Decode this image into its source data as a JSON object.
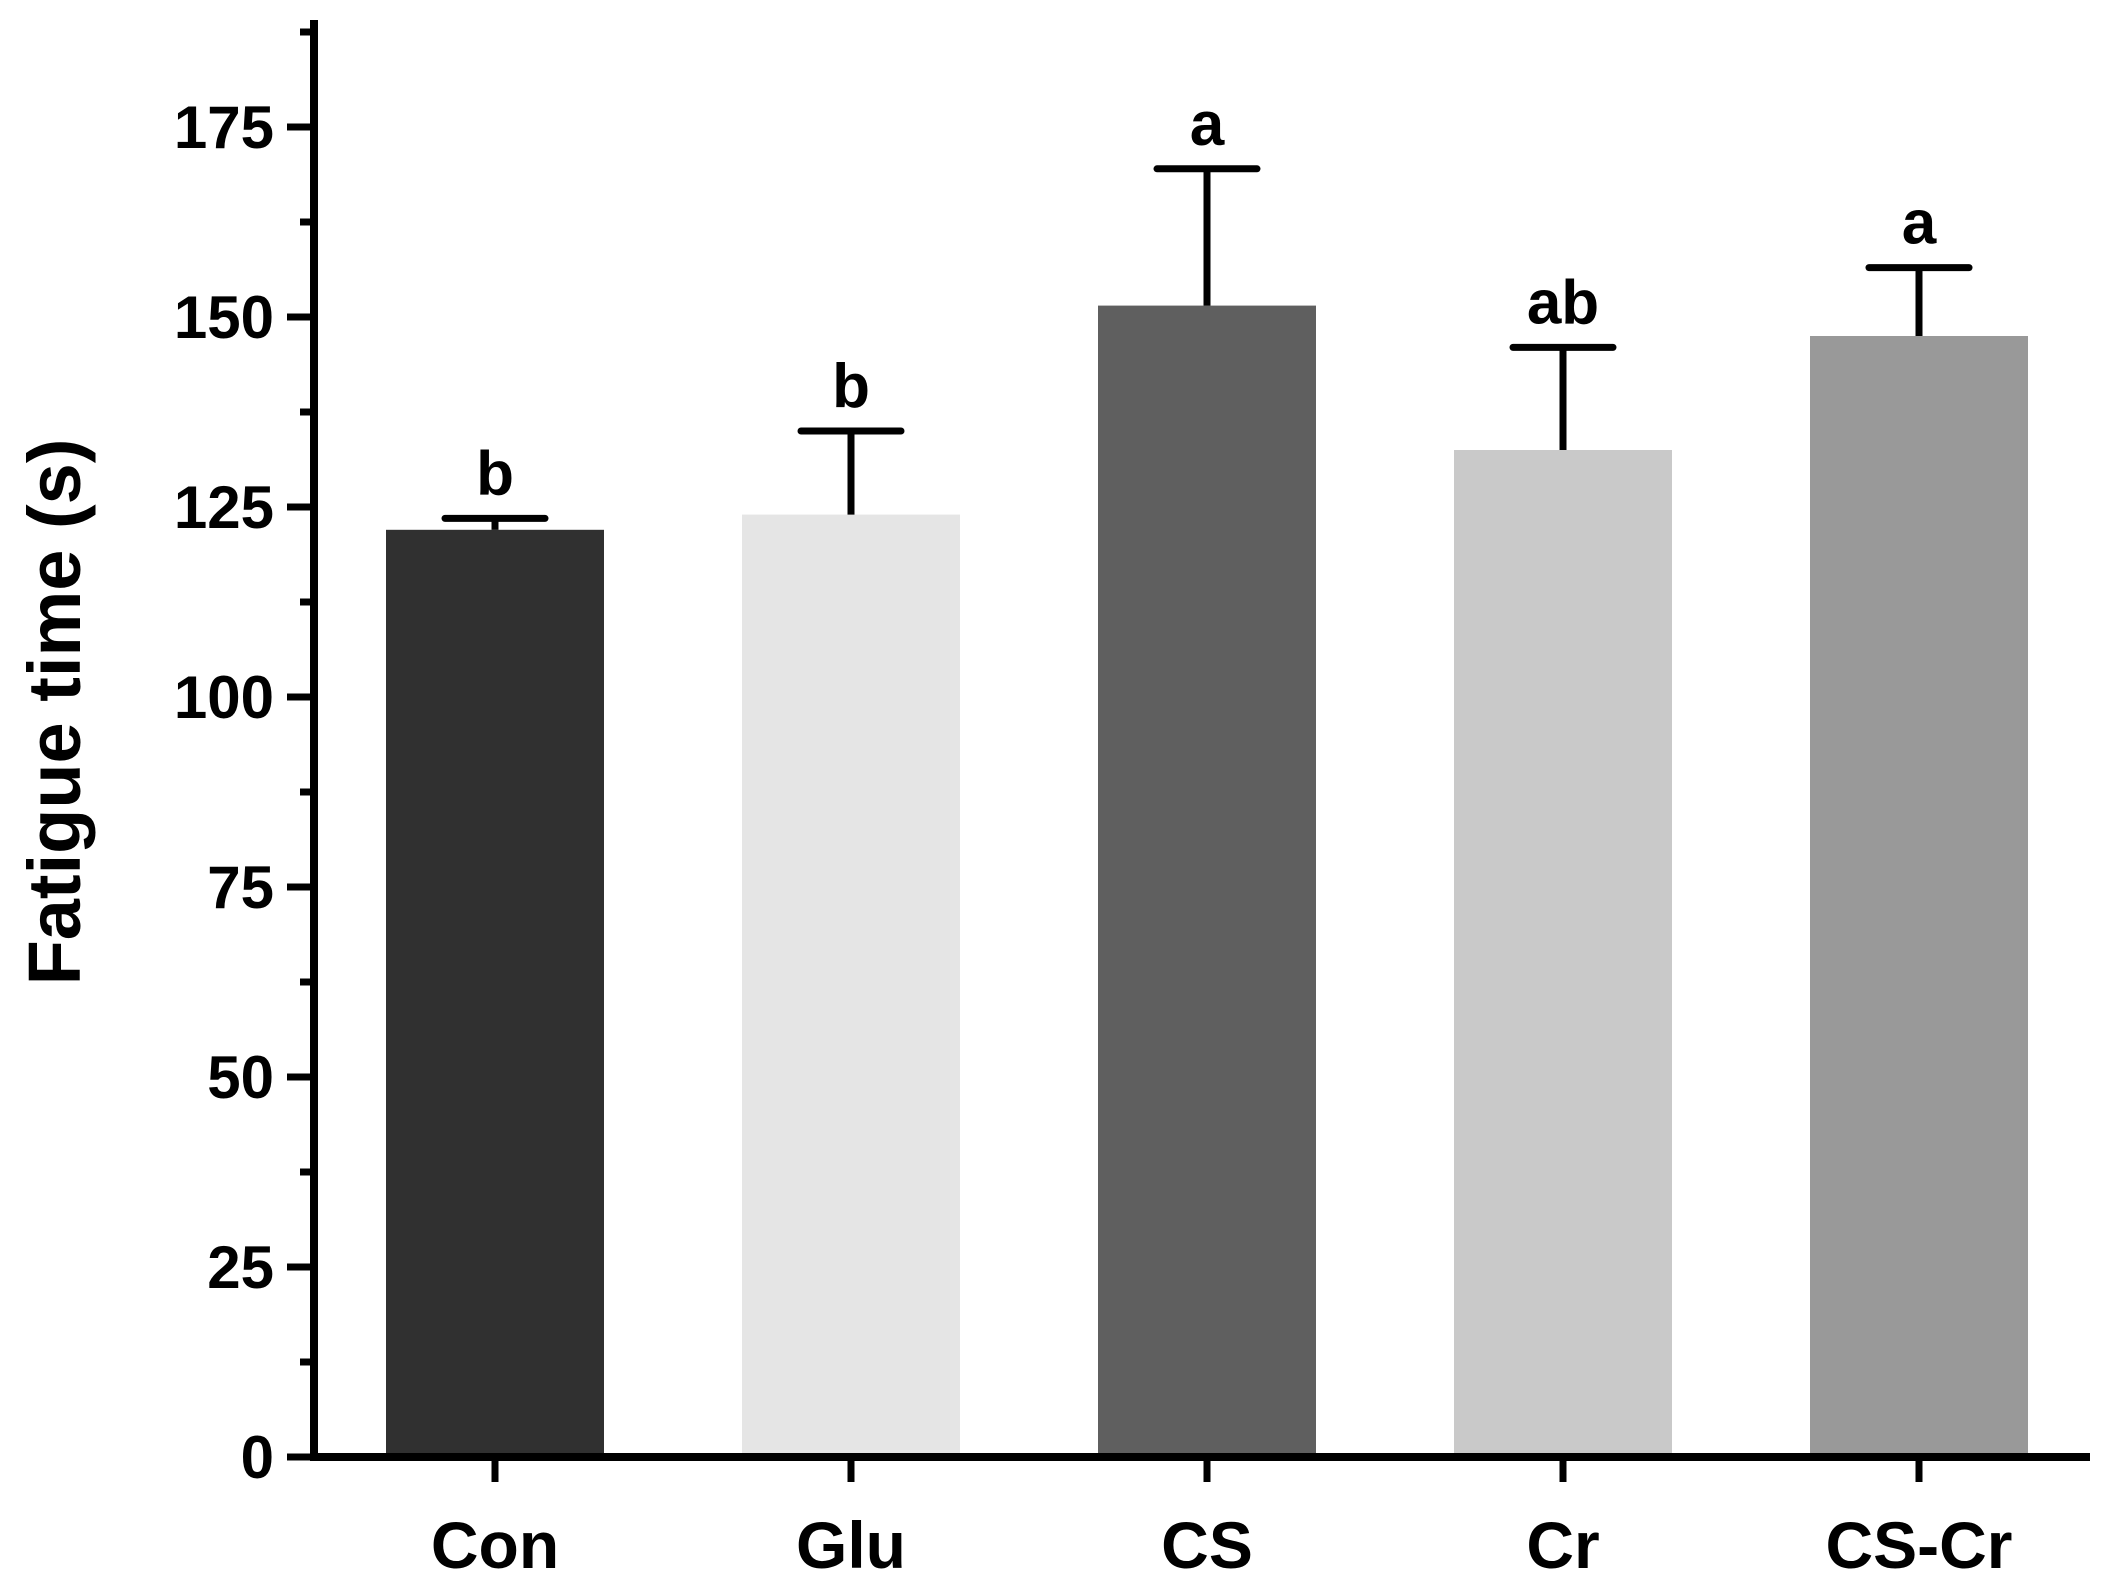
{
  "chart_data": {
    "type": "bar",
    "title": "",
    "xlabel": "",
    "ylabel": "Fatigue time (s)",
    "ylim": [
      0,
      190
    ],
    "yticks": [
      0,
      25,
      50,
      75,
      100,
      125,
      150,
      175
    ],
    "yticks_minor_step": 12.5,
    "grid": false,
    "legend": "none",
    "categories": [
      "Con",
      "Glu",
      "CS",
      "Cr",
      "CS-Cr"
    ],
    "values": [
      122,
      124,
      151.5,
      132.5,
      147.5
    ],
    "error_upper": [
      123.5,
      135,
      169.5,
      146,
      156.5
    ],
    "significance": [
      "b",
      "b",
      "a",
      "ab",
      "a"
    ],
    "bar_colors": [
      "#303030",
      "#e5e5e5",
      "#5f5f5f",
      "#c9c9c9",
      "#999999"
    ],
    "axis_color": "#000000"
  }
}
